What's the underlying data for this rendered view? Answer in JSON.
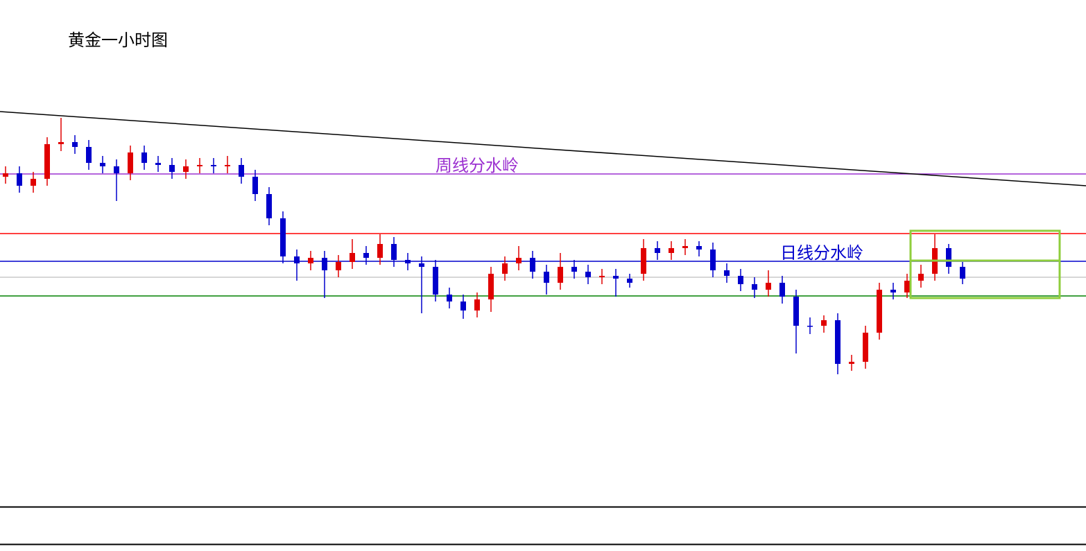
{
  "chart_data": {
    "type": "candlestick",
    "title": "黄金一小时图",
    "up_color": "#e00000",
    "down_color": "#0000cc",
    "ylim": [
      0,
      730
    ],
    "open": [
      475,
      480,
      462,
      472,
      522,
      525,
      518,
      495,
      490,
      480,
      510,
      495,
      492,
      482,
      490,
      492,
      490,
      492,
      475,
      450,
      415,
      360,
      350,
      358,
      340,
      352,
      365,
      358,
      378,
      355,
      350,
      345,
      305,
      295,
      282,
      298,
      335,
      350,
      358,
      338,
      322,
      345,
      338,
      330,
      332,
      328,
      335,
      372,
      365,
      372,
      375,
      370,
      340,
      332,
      320,
      312,
      322,
      302,
      260,
      260,
      268,
      205,
      208,
      250,
      312,
      308,
      325,
      335,
      372,
      345
    ],
    "high": [
      490,
      490,
      482,
      532,
      560,
      535,
      528,
      505,
      500,
      520,
      520,
      505,
      502,
      500,
      502,
      502,
      505,
      502,
      485,
      460,
      425,
      370,
      368,
      368,
      362,
      385,
      375,
      392,
      388,
      365,
      360,
      355,
      315,
      305,
      308,
      345,
      360,
      375,
      368,
      348,
      365,
      355,
      348,
      342,
      342,
      335,
      385,
      382,
      382,
      385,
      382,
      380,
      350,
      342,
      330,
      340,
      332,
      312,
      272,
      275,
      278,
      218,
      260,
      322,
      322,
      335,
      348,
      392,
      378,
      352
    ],
    "low": [
      465,
      452,
      452,
      462,
      512,
      508,
      485,
      480,
      440,
      470,
      485,
      482,
      472,
      472,
      480,
      480,
      480,
      465,
      440,
      405,
      350,
      325,
      340,
      300,
      330,
      342,
      348,
      348,
      345,
      340,
      278,
      295,
      285,
      270,
      272,
      280,
      325,
      340,
      328,
      305,
      312,
      328,
      320,
      320,
      302,
      315,
      325,
      355,
      355,
      362,
      360,
      330,
      322,
      310,
      300,
      302,
      292,
      220,
      248,
      250,
      190,
      195,
      198,
      240,
      298,
      300,
      315,
      325,
      335,
      320
    ],
    "close": [
      480,
      462,
      472,
      522,
      525,
      518,
      495,
      490,
      480,
      510,
      495,
      492,
      482,
      490,
      492,
      490,
      492,
      475,
      450,
      415,
      360,
      350,
      358,
      340,
      352,
      365,
      358,
      378,
      355,
      350,
      345,
      305,
      295,
      282,
      298,
      335,
      350,
      358,
      338,
      322,
      345,
      338,
      330,
      332,
      328,
      322,
      372,
      365,
      372,
      375,
      370,
      340,
      332,
      320,
      312,
      322,
      302,
      260,
      260,
      268,
      205,
      208,
      250,
      312,
      308,
      325,
      335,
      372,
      345,
      328
    ],
    "trendline": {
      "values": [
        569,
        462
      ],
      "color": "#000000"
    },
    "hlines": [
      {
        "value": 479,
        "color": "#9b30d0",
        "label": "周线分水岭"
      },
      {
        "value": 393,
        "color": "#ff0000"
      },
      {
        "value": 353,
        "color": "#0000cc",
        "label": "日线分水岭"
      },
      {
        "value": 330,
        "color": "#c8c8c8"
      },
      {
        "value": 303,
        "color": "#008000"
      }
    ],
    "box": {
      "top": 397,
      "bottom": 300,
      "mid": 354,
      "color": "#8fce3c"
    }
  }
}
